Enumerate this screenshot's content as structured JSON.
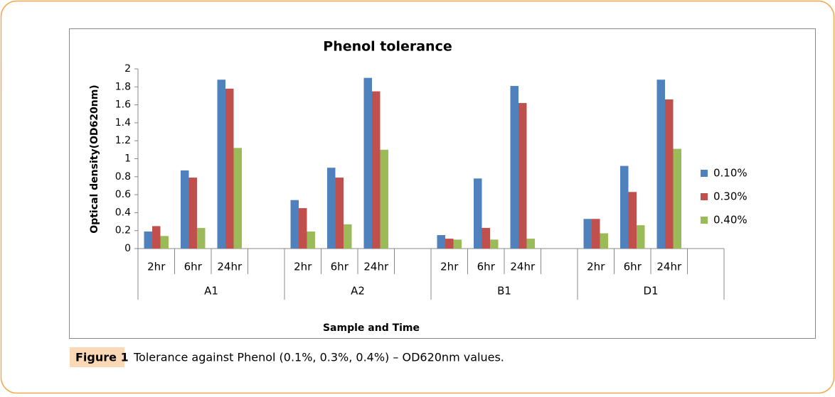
{
  "chart_data": {
    "type": "bar",
    "title": "Phenol tolerance",
    "x_label": "Sample and Time",
    "y_label": "Optical density(OD620nm)",
    "groups": [
      "A1",
      "A2",
      "B1",
      "D1"
    ],
    "categories": [
      "2hr",
      "6hr",
      "24hr",
      null,
      "2hr",
      "6hr",
      "24hr",
      null,
      "2hr",
      "6hr",
      "24hr",
      null,
      "2hr",
      "6hr",
      "24hr"
    ],
    "series": [
      {
        "name": "0.10%",
        "color": "#4f81bd",
        "values": [
          0.19,
          0.87,
          1.88,
          null,
          0.54,
          0.9,
          1.9,
          null,
          0.15,
          0.78,
          1.81,
          null,
          0.33,
          0.92,
          1.88
        ]
      },
      {
        "name": "0.30%",
        "color": "#c0504d",
        "values": [
          0.25,
          0.79,
          1.78,
          null,
          0.45,
          0.79,
          1.75,
          null,
          0.11,
          0.23,
          1.62,
          null,
          0.33,
          0.63,
          1.66
        ]
      },
      {
        "name": "0.40%",
        "color": "#9bbb59",
        "values": [
          0.14,
          0.23,
          1.12,
          null,
          0.19,
          0.27,
          1.1,
          null,
          0.1,
          0.1,
          0.11,
          null,
          0.17,
          0.26,
          1.11
        ]
      }
    ],
    "ylim": [
      0,
      2
    ],
    "yticks": [
      0,
      0.2,
      0.4,
      0.6,
      0.8,
      1,
      1.2,
      1.4,
      1.6,
      1.8,
      2
    ],
    "grid": false,
    "legend": "right"
  },
  "figure": {
    "label": "Figure 1",
    "caption": "Tolerance against Phenol (0.1%, 0.3%, 0.4%) – OD620nm values."
  }
}
